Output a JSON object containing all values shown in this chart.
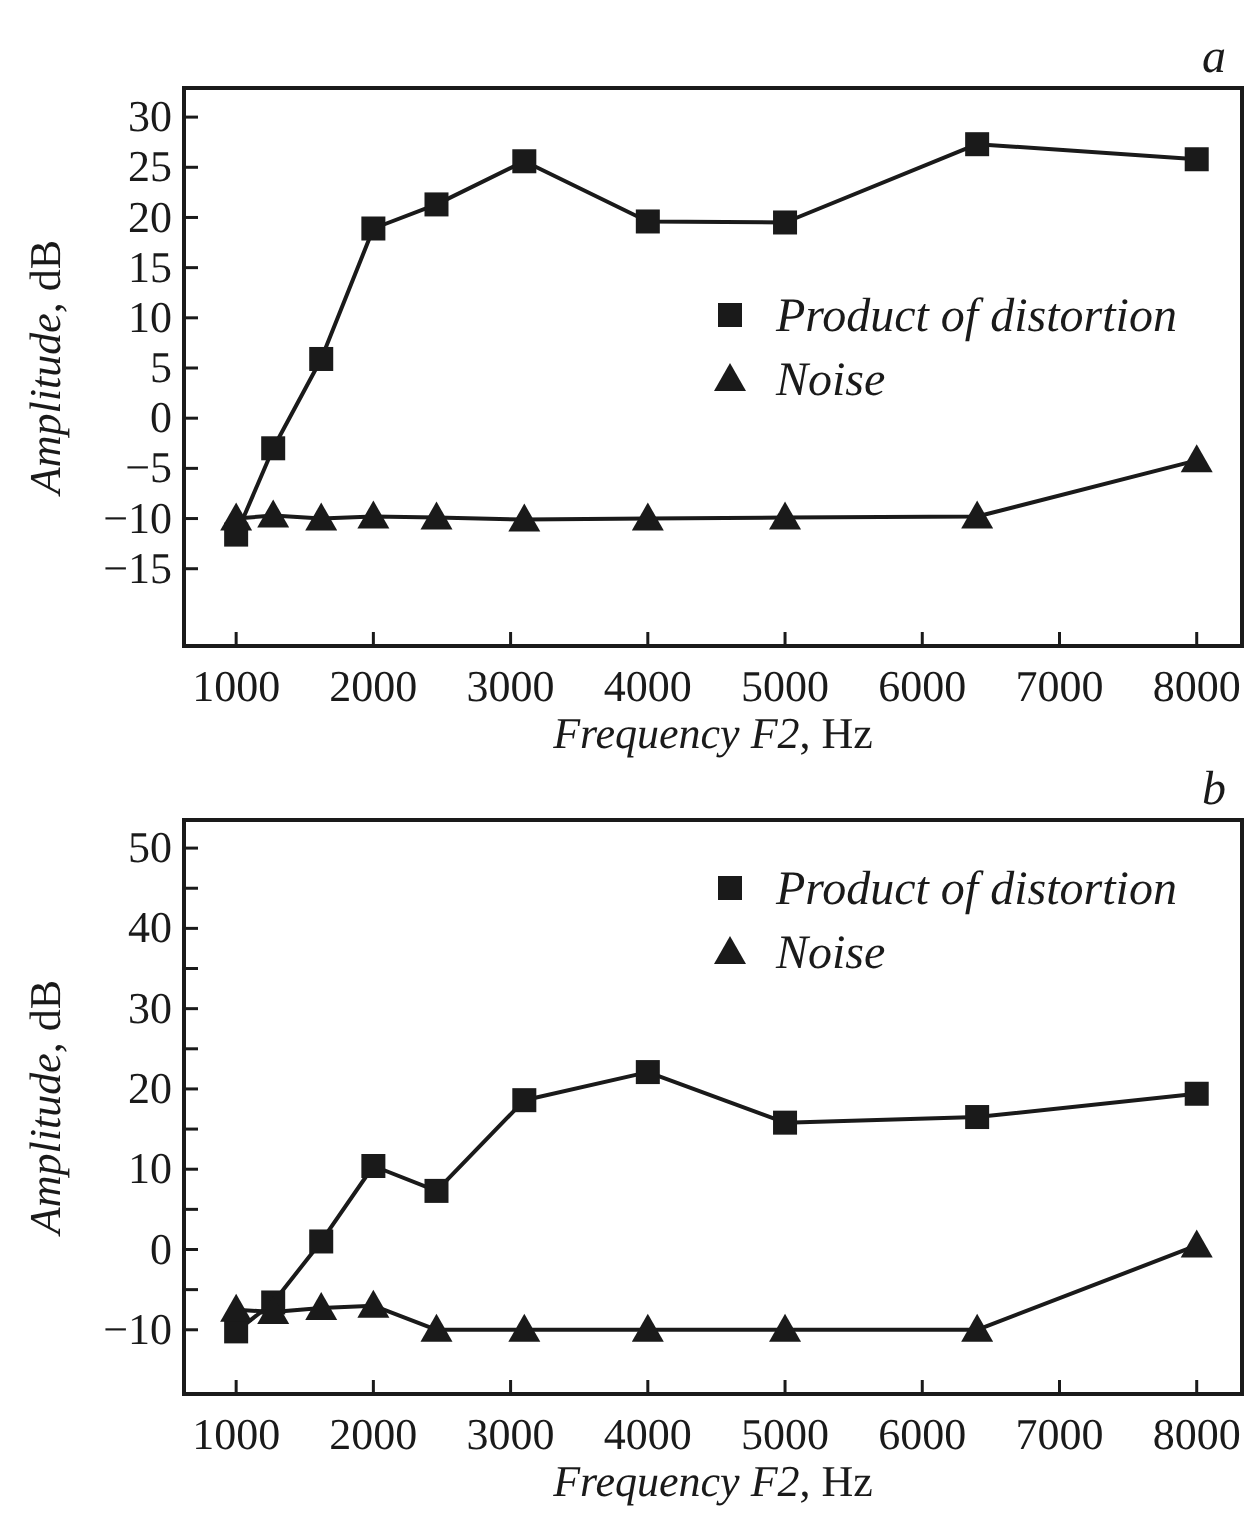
{
  "chart_data": [
    {
      "type": "line",
      "xlabel": "Frequency F2, Hz",
      "ylabel": "Amplitude, dB",
      "annotations": [
        "a"
      ],
      "xlim": [
        620,
        8330
      ],
      "xticks": [
        1000,
        2000,
        3000,
        4000,
        5000,
        6000,
        7000,
        8000
      ],
      "ylim": [
        -22.7,
        32.9
      ],
      "yticks": [
        -15,
        -10,
        -5,
        0,
        5,
        10,
        15,
        20,
        25,
        30
      ],
      "legend": "right",
      "line_style": "solid",
      "series": [
        {
          "name": "Product of distortion",
          "color": "#1a1a1a",
          "marker": "square",
          "x": [
            1000,
            1270,
            1620,
            2000,
            2460,
            3100,
            4000,
            5000,
            6400,
            8000
          ],
          "values": [
            -11.6,
            -3.0,
            5.9,
            18.9,
            21.3,
            25.6,
            19.6,
            19.5,
            27.3,
            25.8
          ]
        },
        {
          "name": "Noise",
          "color": "#1a1a1a",
          "marker": "triangle",
          "x": [
            1000,
            1270,
            1620,
            2000,
            2460,
            3100,
            4000,
            5000,
            6400,
            8000
          ],
          "values": [
            -10,
            -9.7,
            -10,
            -9.8,
            -9.9,
            -10.1,
            -10,
            -9.9,
            -9.8,
            -4.2
          ]
        }
      ]
    },
    {
      "type": "line",
      "xlabel": "Frequency F2, Hz",
      "ylabel": "Amplitude, dB",
      "annotations": [
        "b"
      ],
      "xlim": [
        620,
        8330
      ],
      "xticks": [
        1000,
        2000,
        3000,
        4000,
        5000,
        6000,
        7000,
        8000
      ],
      "ylim": [
        -18,
        53.5
      ],
      "yticks": [
        -10,
        {
          "value": -5,
          "label": null
        },
        0,
        {
          "value": 5,
          "label": null
        },
        10,
        {
          "value": 15,
          "label": null
        },
        20,
        {
          "value": 25,
          "label": null
        },
        30,
        {
          "value": 35,
          "label": null
        },
        40,
        {
          "value": 45,
          "label": null
        },
        50
      ],
      "legend": "top right",
      "line_style": "solid",
      "series": [
        {
          "name": "Product of distortion",
          "color": "#1a1a1a",
          "marker": "square",
          "x": [
            1000,
            1270,
            1620,
            2000,
            2460,
            3100,
            4000,
            5000,
            6400,
            8000
          ],
          "values": [
            -10.2,
            -6.6,
            1.0,
            10.4,
            7.3,
            18.6,
            22.1,
            15.8,
            16.5,
            19.4
          ]
        },
        {
          "name": "Noise",
          "color": "#1a1a1a",
          "marker": "triangle",
          "x": [
            1000,
            1270,
            1620,
            2000,
            2460,
            3100,
            4000,
            5000,
            6400,
            8000
          ],
          "values": [
            -7.5,
            -7.8,
            -7.3,
            -7.0,
            -10,
            -10,
            -10,
            -10,
            -10,
            0.5
          ]
        }
      ]
    }
  ]
}
